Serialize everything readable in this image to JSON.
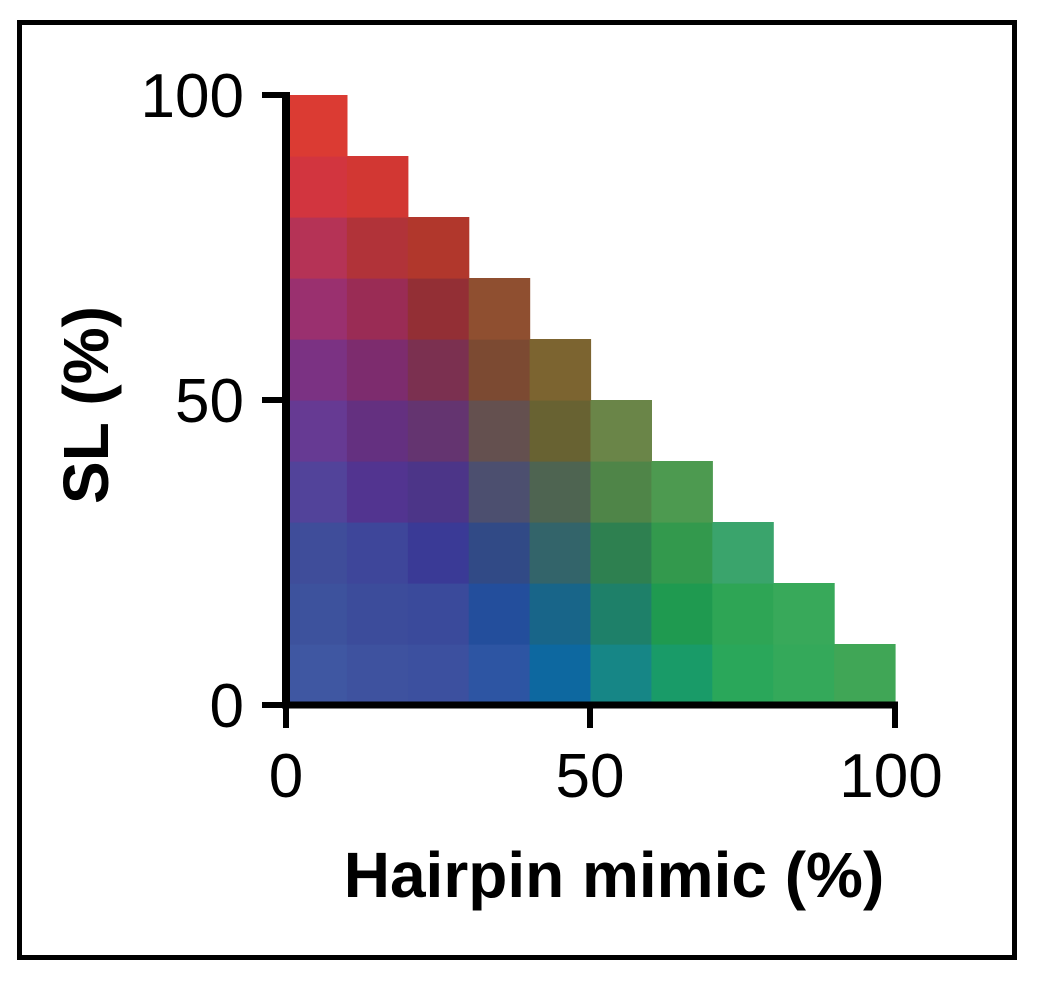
{
  "chart_data": {
    "type": "heatmap",
    "title": "",
    "xlabel": "Hairpin mimic (%)",
    "ylabel": "SL (%)",
    "xlim": [
      0,
      100
    ],
    "ylim": [
      0,
      100
    ],
    "x_ticks": [
      "0",
      "50",
      "100"
    ],
    "y_ticks": [
      "0",
      "50",
      "100"
    ],
    "cell_size": 10,
    "grid": false,
    "legend": "none",
    "cells": [
      {
        "x": 0,
        "y": 0,
        "color": "#3f57a2"
      },
      {
        "x": 10,
        "y": 0,
        "color": "#3e529f"
      },
      {
        "x": 20,
        "y": 0,
        "color": "#3c509f"
      },
      {
        "x": 30,
        "y": 0,
        "color": "#2d55a3"
      },
      {
        "x": 40,
        "y": 0,
        "color": "#0d68a0"
      },
      {
        "x": 50,
        "y": 0,
        "color": "#168686"
      },
      {
        "x": 60,
        "y": 0,
        "color": "#199b68"
      },
      {
        "x": 70,
        "y": 0,
        "color": "#2aa75a"
      },
      {
        "x": 80,
        "y": 0,
        "color": "#34a95a"
      },
      {
        "x": 90,
        "y": 0,
        "color": "#40a656"
      },
      {
        "x": 0,
        "y": 10,
        "color": "#3d529d"
      },
      {
        "x": 10,
        "y": 10,
        "color": "#3c4c9b"
      },
      {
        "x": 20,
        "y": 10,
        "color": "#3a4a9b"
      },
      {
        "x": 30,
        "y": 10,
        "color": "#234e9c"
      },
      {
        "x": 40,
        "y": 10,
        "color": "#186589"
      },
      {
        "x": 50,
        "y": 10,
        "color": "#1e8069"
      },
      {
        "x": 60,
        "y": 10,
        "color": "#1f9a50"
      },
      {
        "x": 70,
        "y": 10,
        "color": "#2ea555"
      },
      {
        "x": 80,
        "y": 10,
        "color": "#38a95a"
      },
      {
        "x": 0,
        "y": 20,
        "color": "#3f4d9a"
      },
      {
        "x": 10,
        "y": 20,
        "color": "#3e469a"
      },
      {
        "x": 20,
        "y": 20,
        "color": "#3a3a96"
      },
      {
        "x": 30,
        "y": 20,
        "color": "#314a86"
      },
      {
        "x": 40,
        "y": 20,
        "color": "#33646a"
      },
      {
        "x": 50,
        "y": 20,
        "color": "#2e8050"
      },
      {
        "x": 60,
        "y": 20,
        "color": "#33994d"
      },
      {
        "x": 70,
        "y": 20,
        "color": "#3aa46c"
      },
      {
        "x": 0,
        "y": 30,
        "color": "#52439a"
      },
      {
        "x": 10,
        "y": 30,
        "color": "#523490"
      },
      {
        "x": 20,
        "y": 30,
        "color": "#4c3588"
      },
      {
        "x": 30,
        "y": 30,
        "color": "#4c4f6f"
      },
      {
        "x": 40,
        "y": 30,
        "color": "#4e6451"
      },
      {
        "x": 50,
        "y": 30,
        "color": "#4f8548"
      },
      {
        "x": 60,
        "y": 30,
        "color": "#4d9a50"
      },
      {
        "x": 0,
        "y": 40,
        "color": "#663a93"
      },
      {
        "x": 10,
        "y": 40,
        "color": "#643080"
      },
      {
        "x": 20,
        "y": 40,
        "color": "#643470"
      },
      {
        "x": 30,
        "y": 40,
        "color": "#64504f"
      },
      {
        "x": 40,
        "y": 40,
        "color": "#686232"
      },
      {
        "x": 50,
        "y": 40,
        "color": "#6a8548"
      },
      {
        "x": 0,
        "y": 50,
        "color": "#7b3283"
      },
      {
        "x": 10,
        "y": 50,
        "color": "#7d2c6e"
      },
      {
        "x": 20,
        "y": 50,
        "color": "#7b3050"
      },
      {
        "x": 30,
        "y": 50,
        "color": "#7c4a32"
      },
      {
        "x": 40,
        "y": 50,
        "color": "#7c6430"
      },
      {
        "x": 0,
        "y": 60,
        "color": "#9a306f"
      },
      {
        "x": 10,
        "y": 60,
        "color": "#9a2c55"
      },
      {
        "x": 20,
        "y": 60,
        "color": "#932f35"
      },
      {
        "x": 30,
        "y": 60,
        "color": "#8f4f30"
      },
      {
        "x": 0,
        "y": 70,
        "color": "#b53356"
      },
      {
        "x": 10,
        "y": 70,
        "color": "#b13339"
      },
      {
        "x": 20,
        "y": 70,
        "color": "#b1372c"
      },
      {
        "x": 0,
        "y": 80,
        "color": "#d2353f"
      },
      {
        "x": 10,
        "y": 80,
        "color": "#d23733"
      },
      {
        "x": 0,
        "y": 90,
        "color": "#db3b33"
      }
    ]
  }
}
